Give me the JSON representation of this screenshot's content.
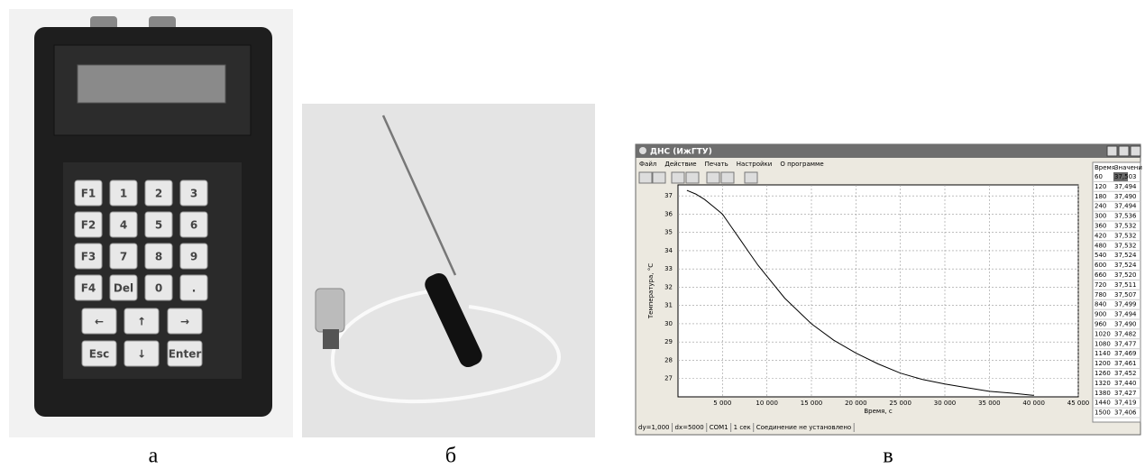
{
  "chart_data": {
    "type": "line",
    "x": [
      1000,
      2000,
      3000,
      4000,
      5000,
      6000,
      7000,
      8000,
      9000,
      10000,
      12000,
      15000,
      17500,
      20000,
      22500,
      25000,
      27500,
      30000,
      32500,
      35000,
      37500,
      40000
    ],
    "series": [
      {
        "color": "#000000",
        "values": [
          37.3,
          37.1,
          36.8,
          36.4,
          36.0,
          35.3,
          34.6,
          33.9,
          33.2,
          32.6,
          31.4,
          30.0,
          29.1,
          28.4,
          27.8,
          27.3,
          26.95,
          26.7,
          26.5,
          26.3,
          26.2,
          26.08
        ]
      }
    ],
    "xlabel": "Время, с",
    "ylabel": "Температура, °С",
    "xlim": [
      0,
      45000
    ],
    "ylim": [
      26.0,
      37.6
    ],
    "xticks": [
      {
        "value": 5000,
        "label": "5 000"
      },
      {
        "value": 10000,
        "label": "10 000"
      },
      {
        "value": 15000,
        "label": "15 000"
      },
      {
        "value": 20000,
        "label": "20 000"
      },
      {
        "value": 25000,
        "label": "25 000"
      },
      {
        "value": 30000,
        "label": "30 000"
      },
      {
        "value": 35000,
        "label": "35 000"
      },
      {
        "value": 40000,
        "label": "40 000"
      },
      {
        "value": 45000,
        "label": "45 000"
      }
    ],
    "yticks": [
      27,
      28,
      29,
      30,
      31,
      32,
      33,
      34,
      35,
      36,
      37
    ],
    "grid": true
  },
  "device": {
    "caption": "а",
    "keys": [
      [
        "F1",
        "1",
        "2",
        "3"
      ],
      [
        "F2",
        "4",
        "5",
        "6"
      ],
      [
        "F3",
        "7",
        "8",
        "9"
      ],
      [
        "F4",
        "Del",
        "0",
        "."
      ],
      [
        "←",
        "↑",
        "→"
      ],
      [
        "Esc",
        "↓",
        "Enter"
      ]
    ]
  },
  "probe": {
    "caption": "б"
  },
  "software": {
    "caption": "в",
    "title": "ДНС (ИжГТУ)",
    "menu": [
      "Файл",
      "Действие",
      "Печать",
      "Настройки",
      "О программе"
    ],
    "table": {
      "header": [
        "Время",
        "Значени"
      ],
      "rows": [
        [
          "60",
          "37,503"
        ],
        [
          "120",
          "37,494"
        ],
        [
          "180",
          "37,490"
        ],
        [
          "240",
          "37,494"
        ],
        [
          "300",
          "37,536"
        ],
        [
          "360",
          "37,532"
        ],
        [
          "420",
          "37,532"
        ],
        [
          "480",
          "37,532"
        ],
        [
          "540",
          "37,524"
        ],
        [
          "600",
          "37,524"
        ],
        [
          "660",
          "37,520"
        ],
        [
          "720",
          "37,511"
        ],
        [
          "780",
          "37,507"
        ],
        [
          "840",
          "37,499"
        ],
        [
          "900",
          "37,494"
        ],
        [
          "960",
          "37,490"
        ],
        [
          "1020",
          "37,482"
        ],
        [
          "1080",
          "37,477"
        ],
        [
          "1140",
          "37,469"
        ],
        [
          "1200",
          "37,461"
        ],
        [
          "1260",
          "37,452"
        ],
        [
          "1320",
          "37,440"
        ],
        [
          "1380",
          "37,427"
        ],
        [
          "1440",
          "37,419"
        ],
        [
          "1500",
          "37,406"
        ]
      ]
    },
    "status": [
      "dy=1,000",
      "dx=5000",
      "COM1",
      "1 сек",
      "Соединение не установлено"
    ]
  }
}
